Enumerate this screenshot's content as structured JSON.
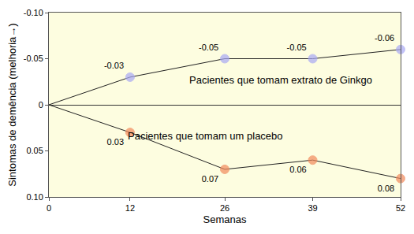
{
  "chart_data": {
    "type": "line",
    "x_label": "Semanas",
    "y_label": "Sintomas de demência (melhoria→)",
    "xlim": [
      0,
      52
    ],
    "xticks": [
      0,
      12,
      26,
      39,
      52
    ],
    "ylim": [
      0.1,
      -0.1
    ],
    "yticks": [
      {
        "value": -0.1,
        "label": "-0.10"
      },
      -0.05,
      0,
      0.05,
      {
        "value": 0.1,
        "label": "0.10"
      }
    ],
    "grid": false,
    "data_labels": true,
    "x": [
      0,
      12,
      26,
      39,
      52
    ],
    "series": [
      {
        "name": "Pacientes que tomam extrato de Ginkgo",
        "color": "#a9a9f5",
        "values": [
          0,
          -0.03,
          -0.05,
          -0.05,
          -0.06
        ],
        "value_labels": [
          null,
          "-0.03",
          "-0.05",
          "-0.05",
          "-0.06"
        ]
      },
      {
        "name": "Pacientes que tomam um placebo",
        "color": "#f28a5c",
        "values": [
          0,
          0.03,
          0.07,
          0.06,
          0.08
        ],
        "value_labels": [
          null,
          "0.03",
          "0.07",
          "0.06",
          "0.08"
        ]
      }
    ]
  }
}
